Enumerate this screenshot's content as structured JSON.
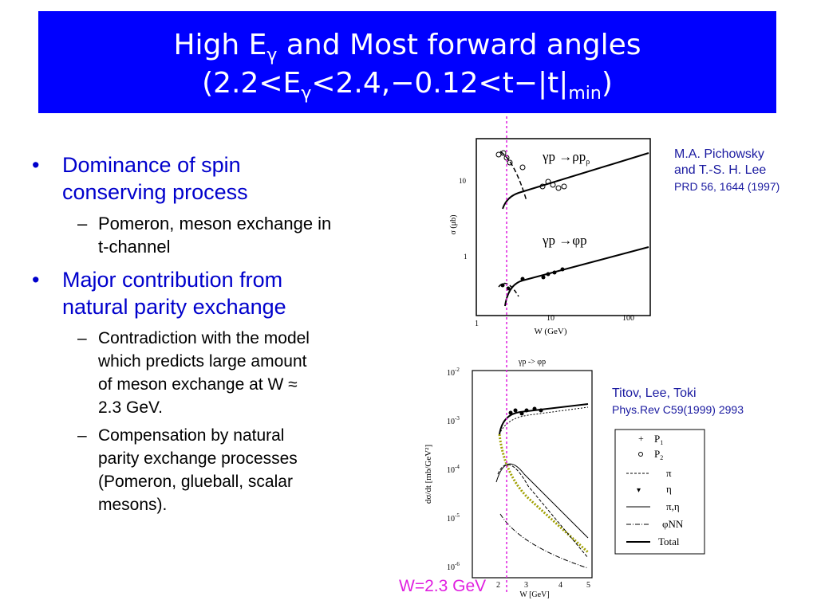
{
  "title": {
    "line1_a": "High E",
    "line1_sub": "γ",
    "line1_b": " and Most forward angles",
    "line2_a": "(2.2<E",
    "line2_sub": "γ",
    "line2_b": "<2.4,−0.12<t−|t|",
    "line2_sub2": "min",
    "line2_c": ")"
  },
  "bullets": [
    {
      "text_1": "Dominance of spin",
      "text_2": "conserving process",
      "sub": [
        {
          "lines": [
            "Pomeron, meson exchange in",
            "t-channel"
          ]
        }
      ]
    },
    {
      "text_1": "Major contribution from",
      "text_2": "natural parity exchange",
      "sub": [
        {
          "lines": [
            "Contradiction with the model",
            "which predicts large amount",
            "of meson exchange at W ≈",
            "2.3 GeV."
          ]
        },
        {
          "lines": [
            "Compensation by natural",
            "parity exchange processes",
            "(Pomeron, glueball, scalar",
            "mesons)."
          ]
        }
      ]
    }
  ],
  "refs": {
    "top_1": "M.A. Pichowsky",
    "top_2": "and T.-S. H. Lee",
    "top_3": "PRD 56, 1644 (1997)",
    "bottom_1": "Titov, Lee, Toki",
    "bottom_2": "Phys.Rev C59(1999) 2993"
  },
  "marker_label": "W=2.3 GeV",
  "colors": {
    "title_bg": "#0000ff",
    "bullet_text": "#0000cc",
    "marker": "#e020e0",
    "ref_text": "#1a1aa0"
  },
  "chart_top": {
    "ylabel": "σ (μb)",
    "xlabel": "W (GeV)",
    "x_ticks": [
      "1",
      "10",
      "100"
    ],
    "y_ticks": [
      "10",
      "1"
    ],
    "label_rho_a": "γp →ρp",
    "label_rho_sub": "ρ",
    "label_phi": "γp →φp"
  },
  "chart_bottom": {
    "title": "γp -> φp",
    "ylabel": "dσ/dt [mb/GeV²]",
    "xlabel": "W [GeV]",
    "x_ticks": [
      "2",
      "3",
      "4",
      "5"
    ],
    "y_ticks": [
      "10",
      "10",
      "10",
      "10",
      "10"
    ],
    "y_exps": [
      "-2",
      "-3",
      "-4",
      "-5",
      "-6"
    ],
    "legend": [
      "P",
      "P",
      "π",
      "η",
      "π,η",
      "φNN",
      "Total"
    ],
    "legend_subs": [
      "1",
      "2"
    ]
  }
}
